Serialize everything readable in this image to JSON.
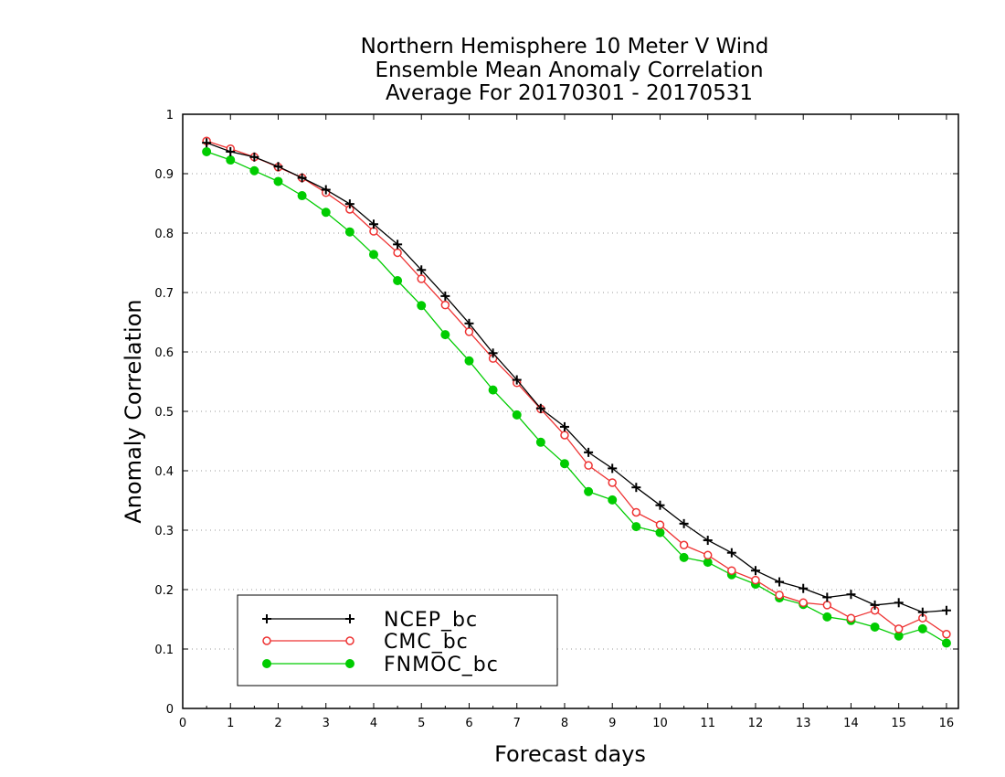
{
  "chart_data": {
    "type": "line",
    "title": [
      "Northern Hemisphere 10 Meter V Wind",
      "Ensemble Mean Anomaly Correlation",
      "Average For 20170301 - 20170531"
    ],
    "xlabel": "Forecast days",
    "ylabel": "Anomaly Correlation",
    "xlim": [
      0,
      16.25
    ],
    "ylim": [
      0,
      1
    ],
    "xticks": [
      "0",
      "1",
      "2",
      "3",
      "4",
      "5",
      "6",
      "7",
      "8",
      "9",
      "10",
      "11",
      "12",
      "13",
      "14",
      "15",
      "16"
    ],
    "yticks": [
      "0",
      "0.1",
      "0.2",
      "0.3",
      "0.4",
      "0.5",
      "0.6",
      "0.7",
      "0.8",
      "0.9",
      "1"
    ],
    "grid": "horizontal dotted",
    "legend_position": "bottom-left",
    "x": [
      0.5,
      1,
      1.5,
      2,
      2.5,
      3,
      3.5,
      4,
      4.5,
      5,
      5.5,
      6,
      6.5,
      7,
      7.5,
      8,
      8.5,
      9,
      9.5,
      10,
      10.5,
      11,
      11.5,
      12,
      12.5,
      13,
      13.5,
      14,
      14.5,
      15,
      15.5,
      16
    ],
    "series": [
      {
        "name": "NCEP_bc",
        "color": "#000000",
        "marker": "plus",
        "values": [
          0.952,
          0.937,
          0.928,
          0.912,
          0.893,
          0.873,
          0.849,
          0.815,
          0.781,
          0.738,
          0.694,
          0.648,
          0.598,
          0.553,
          0.505,
          0.474,
          0.431,
          0.404,
          0.372,
          0.342,
          0.311,
          0.283,
          0.262,
          0.232,
          0.213,
          0.202,
          0.187,
          0.192,
          0.174,
          0.178,
          0.162,
          0.165
        ]
      },
      {
        "name": "CMC_bc",
        "color": "#ee3333",
        "marker": "open-circle",
        "values": [
          0.955,
          0.942,
          0.928,
          0.911,
          0.893,
          0.868,
          0.84,
          0.803,
          0.767,
          0.723,
          0.679,
          0.634,
          0.589,
          0.548,
          0.504,
          0.46,
          0.409,
          0.38,
          0.33,
          0.309,
          0.275,
          0.258,
          0.232,
          0.216,
          0.191,
          0.178,
          0.174,
          0.152,
          0.165,
          0.134,
          0.152,
          0.125
        ]
      },
      {
        "name": "FNMOC_bc",
        "color": "#00cc00",
        "marker": "filled-circle",
        "values": [
          0.937,
          0.923,
          0.905,
          0.887,
          0.863,
          0.835,
          0.802,
          0.764,
          0.72,
          0.678,
          0.629,
          0.585,
          0.536,
          0.494,
          0.448,
          0.412,
          0.365,
          0.351,
          0.306,
          0.296,
          0.254,
          0.246,
          0.225,
          0.209,
          0.186,
          0.175,
          0.154,
          0.148,
          0.137,
          0.122,
          0.134,
          0.11
        ]
      }
    ]
  }
}
